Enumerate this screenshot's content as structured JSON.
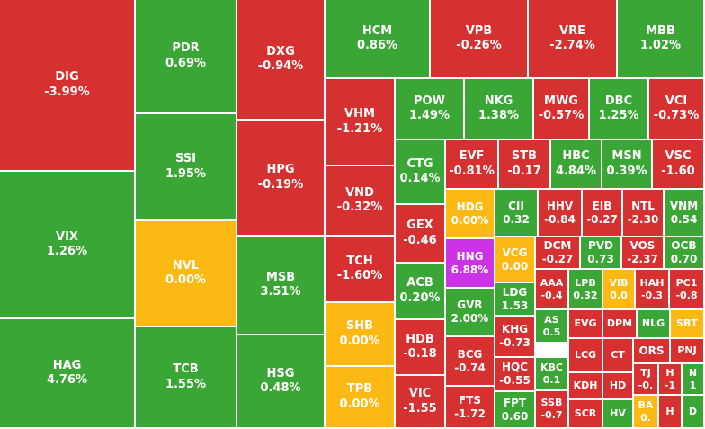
{
  "colors": {
    "up": "#3aa635",
    "down": "#d63031",
    "flat": "#fdb913",
    "ceiling": "#cc33e6",
    "border": "#ffffff"
  },
  "chart_data": {
    "type": "treemap",
    "tiles": [
      {
        "symbol": "DIG",
        "change": "-3.99%",
        "status": "down"
      },
      {
        "symbol": "VIX",
        "change": "1.26%",
        "status": "up"
      },
      {
        "symbol": "HAG",
        "change": "4.76%",
        "status": "up"
      },
      {
        "symbol": "PDR",
        "change": "0.69%",
        "status": "up"
      },
      {
        "symbol": "SSI",
        "change": "1.95%",
        "status": "up"
      },
      {
        "symbol": "NVL",
        "change": "0.00%",
        "status": "flat"
      },
      {
        "symbol": "TCB",
        "change": "1.55%",
        "status": "up"
      },
      {
        "symbol": "DXG",
        "change": "-0.94%",
        "status": "down"
      },
      {
        "symbol": "HPG",
        "change": "-0.19%",
        "status": "down"
      },
      {
        "symbol": "MSB",
        "change": "3.51%",
        "status": "up"
      },
      {
        "symbol": "HSG",
        "change": "0.48%",
        "status": "up"
      },
      {
        "symbol": "HCM",
        "change": "0.86%",
        "status": "up"
      },
      {
        "symbol": "VPB",
        "change": "-0.26%",
        "status": "down"
      },
      {
        "symbol": "VRE",
        "change": "-2.74%",
        "status": "down"
      },
      {
        "symbol": "MBB",
        "change": "1.02%",
        "status": "up"
      },
      {
        "symbol": "VHM",
        "change": "-1.21%",
        "status": "down"
      },
      {
        "symbol": "VND",
        "change": "-0.32%",
        "status": "down"
      },
      {
        "symbol": "TCH",
        "change": "-1.60%",
        "status": "down"
      },
      {
        "symbol": "SHB",
        "change": "0.00%",
        "status": "flat"
      },
      {
        "symbol": "TPB",
        "change": "0.00%",
        "status": "flat"
      },
      {
        "symbol": "POW",
        "change": "1.49%",
        "status": "up"
      },
      {
        "symbol": "NKG",
        "change": "1.38%",
        "status": "up"
      },
      {
        "symbol": "MWG",
        "change": "-0.57%",
        "status": "down"
      },
      {
        "symbol": "DBC",
        "change": "1.25%",
        "status": "up"
      },
      {
        "symbol": "VCI",
        "change": "-0.73%",
        "status": "down"
      },
      {
        "symbol": "CTG",
        "change": "0.14%",
        "status": "up"
      },
      {
        "symbol": "EVF",
        "change": "-0.81%",
        "status": "down"
      },
      {
        "symbol": "STB",
        "change": "-0.17",
        "status": "down"
      },
      {
        "symbol": "HBC",
        "change": "4.84%",
        "status": "up"
      },
      {
        "symbol": "MSN",
        "change": "0.39%",
        "status": "up"
      },
      {
        "symbol": "VSC",
        "change": "-1.60",
        "status": "down"
      },
      {
        "symbol": "GEX",
        "change": "-0.46",
        "status": "down"
      },
      {
        "symbol": "HDG",
        "change": "0.00%",
        "status": "flat"
      },
      {
        "symbol": "CII",
        "change": "0.32",
        "status": "up"
      },
      {
        "symbol": "HHV",
        "change": "-0.84",
        "status": "down"
      },
      {
        "symbol": "EIB",
        "change": "-0.27",
        "status": "down"
      },
      {
        "symbol": "NTL",
        "change": "-2.30",
        "status": "down"
      },
      {
        "symbol": "VNM",
        "change": "0.54",
        "status": "up"
      },
      {
        "symbol": "HNG",
        "change": "6.88%",
        "status": "ceiling"
      },
      {
        "symbol": "VCG",
        "change": "0.00",
        "status": "flat"
      },
      {
        "symbol": "DCM",
        "change": "-0.27",
        "status": "down"
      },
      {
        "symbol": "PVD",
        "change": "0.73",
        "status": "up"
      },
      {
        "symbol": "VOS",
        "change": "-2.37",
        "status": "down"
      },
      {
        "symbol": "OCB",
        "change": "0.70",
        "status": "up"
      },
      {
        "symbol": "ACB",
        "change": "0.20%",
        "status": "up"
      },
      {
        "symbol": "LDG",
        "change": "1.53",
        "status": "up"
      },
      {
        "symbol": "AAA",
        "change": "-0.4",
        "status": "down"
      },
      {
        "symbol": "LPB",
        "change": "0.32",
        "status": "up"
      },
      {
        "symbol": "VIB",
        "change": "0.0",
        "status": "flat"
      },
      {
        "symbol": "HAH",
        "change": "-0.3",
        "status": "down"
      },
      {
        "symbol": "PC1",
        "change": "-0.8",
        "status": "down"
      },
      {
        "symbol": "GVR",
        "change": "2.00%",
        "status": "up"
      },
      {
        "symbol": "AS",
        "change": "0.5",
        "status": "up"
      },
      {
        "symbol": "EVG",
        "change": "",
        "status": "down"
      },
      {
        "symbol": "DPM",
        "change": "",
        "status": "down"
      },
      {
        "symbol": "NLG",
        "change": "",
        "status": "up"
      },
      {
        "symbol": "SBT",
        "change": "",
        "status": "flat"
      },
      {
        "symbol": "HDB",
        "change": "-0.18",
        "status": "down"
      },
      {
        "symbol": "KHG",
        "change": "-0.73",
        "status": "down"
      },
      {
        "symbol": "LCG",
        "change": "",
        "status": "down"
      },
      {
        "symbol": "CT",
        "change": "",
        "status": "down"
      },
      {
        "symbol": "ORS",
        "change": "",
        "status": "down"
      },
      {
        "symbol": "PNJ",
        "change": "",
        "status": "down"
      },
      {
        "symbol": "BCG",
        "change": "-0.74",
        "status": "down"
      },
      {
        "symbol": "KBC",
        "change": "0.1",
        "status": "up"
      },
      {
        "symbol": "TJ",
        "change": "-0.",
        "status": "down"
      },
      {
        "symbol": "H",
        "change": "-1",
        "status": "down"
      },
      {
        "symbol": "N",
        "change": "1",
        "status": "up"
      },
      {
        "symbol": "HQC",
        "change": "-0.55",
        "status": "down"
      },
      {
        "symbol": "KDH",
        "change": "",
        "status": "down"
      },
      {
        "symbol": "HD",
        "change": "",
        "status": "down"
      },
      {
        "symbol": "VIC",
        "change": "-1.55",
        "status": "down"
      },
      {
        "symbol": "FTS",
        "change": "-1.72",
        "status": "down"
      },
      {
        "symbol": "FPT",
        "change": "0.60",
        "status": "up"
      },
      {
        "symbol": "SSB",
        "change": "-0.7",
        "status": "down"
      },
      {
        "symbol": "SCR",
        "change": "",
        "status": "down"
      },
      {
        "symbol": "HV",
        "change": "",
        "status": "up"
      },
      {
        "symbol": "BA",
        "change": "0.",
        "status": "flat"
      },
      {
        "symbol": "H",
        "change": "",
        "status": "down"
      },
      {
        "symbol": "D",
        "change": "",
        "status": "up"
      }
    ]
  }
}
